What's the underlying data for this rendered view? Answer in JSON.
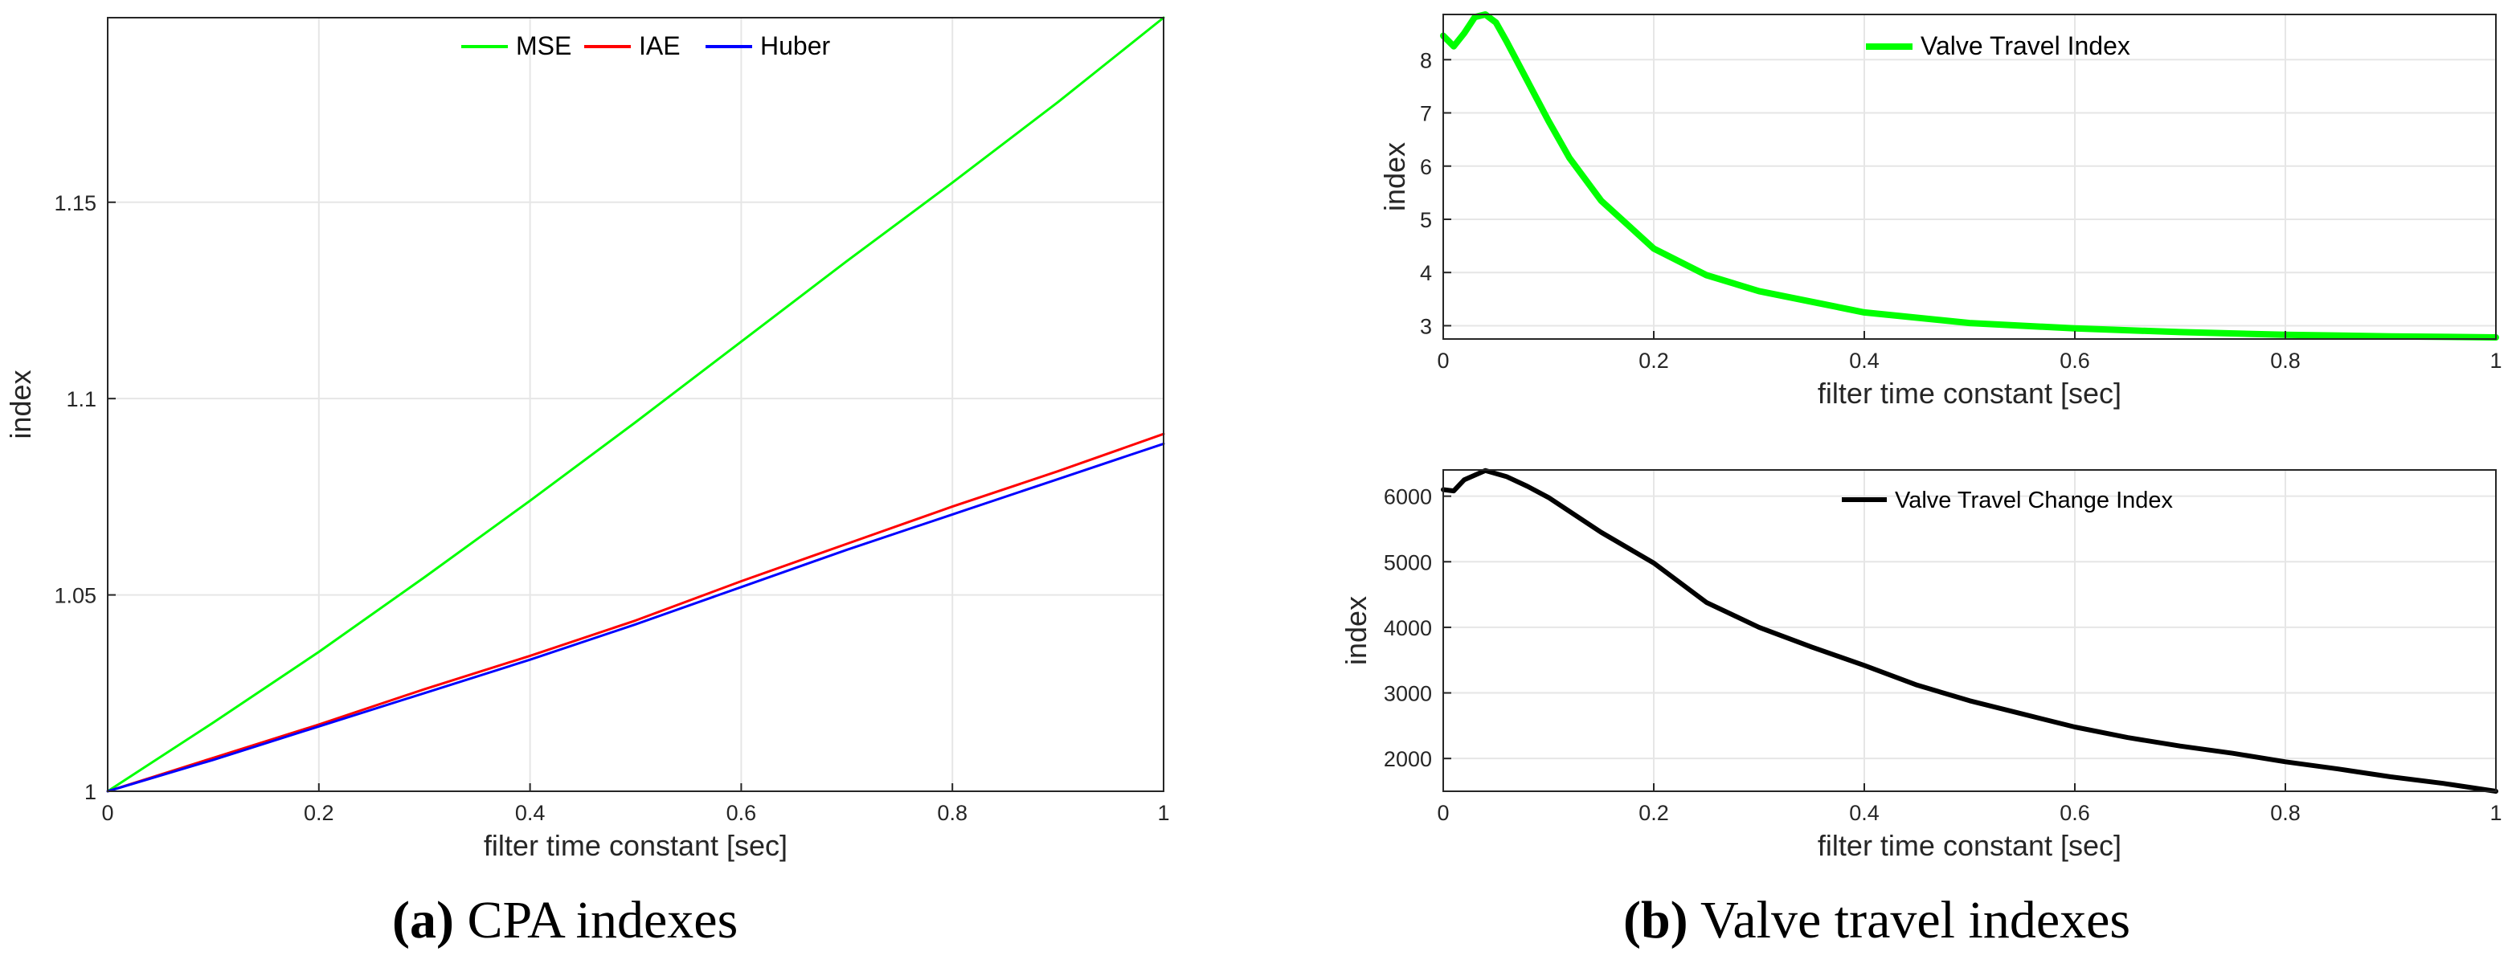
{
  "chart_data": [
    {
      "id": "cpa",
      "type": "line",
      "title": "",
      "xlabel": "filter time constant [sec]",
      "ylabel": "index",
      "xlim": [
        0,
        1
      ],
      "ylim": [
        1,
        1.197
      ],
      "x_ticks": [
        "0",
        "0.2",
        "0.4",
        "0.6",
        "0.8",
        "1"
      ],
      "x_tick_values": [
        0,
        0.2,
        0.4,
        0.6,
        0.8,
        1
      ],
      "y_ticks": [
        "1",
        "1.05",
        "1.1",
        "1.15"
      ],
      "y_tick_values": [
        1,
        1.05,
        1.1,
        1.15
      ],
      "grid": true,
      "legend": "top-center",
      "x": [
        0,
        0.1,
        0.2,
        0.3,
        0.4,
        0.5,
        0.6,
        0.7,
        0.8,
        0.9,
        1.0
      ],
      "series": [
        {
          "name": "MSE",
          "color": "#00ff00",
          "values": [
            1.0,
            1.0175,
            1.0355,
            1.0545,
            1.074,
            1.094,
            1.1145,
            1.135,
            1.155,
            1.1755,
            1.197
          ]
        },
        {
          "name": "IAE",
          "color": "#ff0000",
          "values": [
            1.0,
            1.0085,
            1.017,
            1.026,
            1.0345,
            1.0435,
            1.0535,
            1.063,
            1.0725,
            1.0815,
            1.091
          ]
        },
        {
          "name": "Huber",
          "color": "#0000ff",
          "values": [
            1.0,
            1.008,
            1.0165,
            1.025,
            1.0335,
            1.0425,
            1.052,
            1.0615,
            1.0705,
            1.0795,
            1.0885
          ]
        }
      ]
    },
    {
      "id": "vti",
      "type": "line",
      "title": "",
      "xlabel": "filter time constant [sec]",
      "ylabel": "index",
      "xlim": [
        0,
        1
      ],
      "ylim": [
        2.75,
        8.85
      ],
      "x_ticks": [
        "0",
        "0.2",
        "0.4",
        "0.6",
        "0.8",
        "1"
      ],
      "x_tick_values": [
        0,
        0.2,
        0.4,
        0.6,
        0.8,
        1
      ],
      "y_ticks": [
        "3",
        "4",
        "5",
        "6",
        "7",
        "8"
      ],
      "y_tick_values": [
        3,
        4,
        5,
        6,
        7,
        8
      ],
      "grid": true,
      "legend": "top-center",
      "x": [
        0,
        0.01,
        0.02,
        0.03,
        0.04,
        0.05,
        0.06,
        0.08,
        0.1,
        0.12,
        0.15,
        0.2,
        0.25,
        0.3,
        0.4,
        0.5,
        0.6,
        0.7,
        0.8,
        0.9,
        1.0
      ],
      "series": [
        {
          "name": "Valve Travel Index",
          "color": "#00ff00",
          "values": [
            8.45,
            8.25,
            8.5,
            8.8,
            8.85,
            8.7,
            8.35,
            7.6,
            6.85,
            6.15,
            5.35,
            4.45,
            3.95,
            3.65,
            3.25,
            3.05,
            2.95,
            2.88,
            2.83,
            2.8,
            2.78
          ]
        }
      ]
    },
    {
      "id": "vtci",
      "type": "line",
      "title": "",
      "xlabel": "filter time constant [sec]",
      "ylabel": "index",
      "xlim": [
        0,
        1
      ],
      "ylim": [
        1500,
        6400
      ],
      "x_ticks": [
        "0",
        "0.2",
        "0.4",
        "0.6",
        "0.8",
        "1"
      ],
      "x_tick_values": [
        0,
        0.2,
        0.4,
        0.6,
        0.8,
        1
      ],
      "y_ticks": [
        "2000",
        "3000",
        "4000",
        "5000",
        "6000"
      ],
      "y_tick_values": [
        2000,
        3000,
        4000,
        5000,
        6000
      ],
      "grid": true,
      "legend": "top-center",
      "x": [
        0,
        0.01,
        0.02,
        0.04,
        0.06,
        0.08,
        0.1,
        0.15,
        0.2,
        0.25,
        0.3,
        0.35,
        0.4,
        0.45,
        0.5,
        0.55,
        0.6,
        0.65,
        0.7,
        0.75,
        0.8,
        0.85,
        0.9,
        0.95,
        1.0
      ],
      "series": [
        {
          "name": "Valve Travel Change Index",
          "color": "#000000",
          "values": [
            6100,
            6080,
            6250,
            6390,
            6300,
            6150,
            5980,
            5450,
            4980,
            4380,
            4000,
            3700,
            3420,
            3120,
            2880,
            2680,
            2480,
            2320,
            2190,
            2080,
            1950,
            1840,
            1720,
            1620,
            1500
          ]
        }
      ]
    }
  ],
  "captions": [
    {
      "letter": "(a)",
      "text": " CPA indexes"
    },
    {
      "letter": "(b)",
      "text": " Valve travel indexes"
    }
  ]
}
